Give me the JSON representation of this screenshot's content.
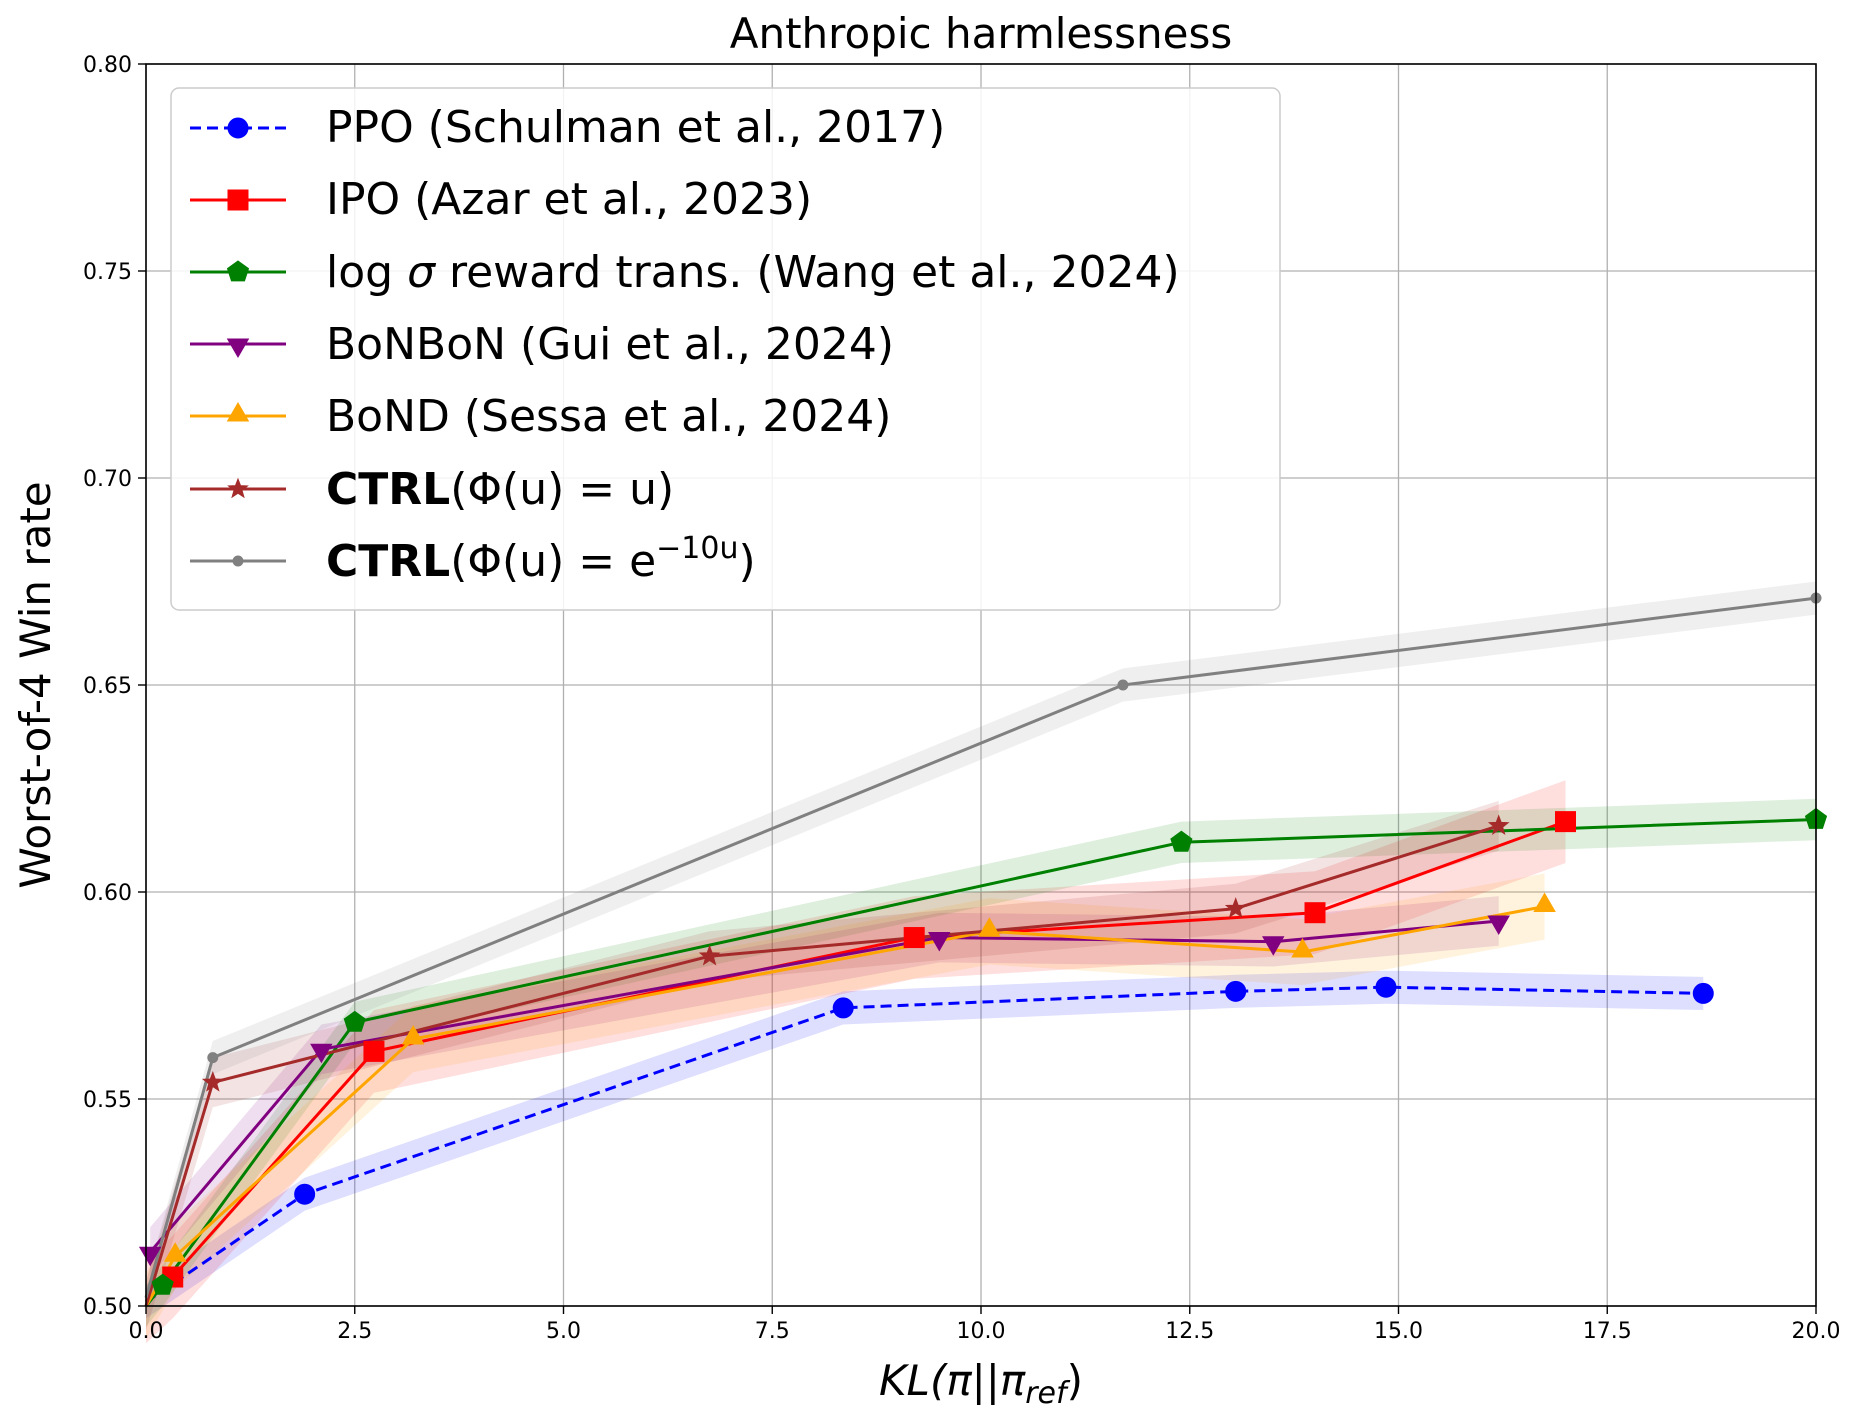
{
  "chart_data": {
    "type": "line",
    "title": "Anthropic harmlessness",
    "xlabel": {
      "base": "KL(π||π",
      "sub": "ref",
      "close": ")"
    },
    "ylabel": "Worst-of-4 Win rate",
    "xlim": [
      0,
      20
    ],
    "ylim": [
      0.5,
      0.8
    ],
    "x_ticks": [
      0,
      2.5,
      5,
      7.5,
      10,
      12.5,
      15,
      17.5,
      20
    ],
    "x_tick_labels": [
      "0.0",
      "2.5",
      "5.0",
      "7.5",
      "10.0",
      "12.5",
      "15.0",
      "17.5",
      "20.0"
    ],
    "y_ticks": [
      0.5,
      0.55,
      0.6,
      0.65,
      0.7,
      0.75,
      0.8
    ],
    "y_tick_labels": [
      "0.50",
      "0.55",
      "0.60",
      "0.65",
      "0.70",
      "0.75",
      "0.80"
    ],
    "grid": true,
    "legend_position": "top-left",
    "series": [
      {
        "name": "PPO (Schulman et al., 2017)",
        "color": "#0000ff",
        "marker": "circle",
        "dashed": true,
        "band": 0.004,
        "x": [
          0.0,
          1.9,
          8.35,
          13.05,
          14.85,
          18.65
        ],
        "y": [
          0.501,
          0.527,
          0.572,
          0.576,
          0.577,
          0.5755
        ]
      },
      {
        "name": "IPO (Azar et al., 2023)",
        "color": "#ff0000",
        "marker": "square",
        "dashed": false,
        "band": 0.01,
        "x": [
          0.0,
          0.32,
          2.73,
          9.2,
          14.0,
          17.0
        ],
        "y": [
          0.501,
          0.507,
          0.5615,
          0.589,
          0.595,
          0.617
        ]
      },
      {
        "name": "log σ reward trans. (Wang et al., 2024)",
        "label_parts": {
          "prefix": "log ",
          "symbol": "σ",
          "suffix": " reward trans. (Wang et al., 2024)"
        },
        "color": "#008000",
        "marker": "pentagon",
        "dashed": false,
        "band": 0.005,
        "x": [
          0.0,
          0.2,
          2.5,
          12.4,
          20.0
        ],
        "y": [
          0.5,
          0.505,
          0.5685,
          0.612,
          0.6175
        ]
      },
      {
        "name": "BoNBoN (Gui et al., 2024)",
        "color": "#800080",
        "marker": "triangle-down",
        "dashed": false,
        "band": 0.006,
        "x": [
          0.05,
          2.1,
          9.5,
          13.5,
          16.2
        ],
        "y": [
          0.513,
          0.562,
          0.589,
          0.588,
          0.593
        ]
      },
      {
        "name": "BoND (Sessa et al., 2024)",
        "color": "#ffa500",
        "marker": "triangle-up",
        "dashed": false,
        "band": 0.008,
        "x": [
          0.0,
          0.35,
          3.2,
          10.1,
          13.85,
          16.75
        ],
        "y": [
          0.5,
          0.512,
          0.5645,
          0.5905,
          0.5855,
          0.5965
        ]
      },
      {
        "name": "CTRL(Φ(u) = u)",
        "label_parts": {
          "bold": "CTRL",
          "rest": "(Φ(u) = u)"
        },
        "color": "#a52a2a",
        "marker": "star",
        "dashed": false,
        "band": 0.006,
        "x": [
          0.0,
          0.8,
          6.75,
          13.05,
          16.2
        ],
        "y": [
          0.5,
          0.554,
          0.5845,
          0.596,
          0.616
        ]
      },
      {
        "name": "CTRL(Φ(u) = e^(-10u))",
        "label_parts": {
          "bold": "CTRL",
          "rest": "(Φ(u) = e",
          "sup": "−10u",
          "close": ")"
        },
        "color": "#808080",
        "marker": "small-circle",
        "dashed": false,
        "band": 0.004,
        "x": [
          0.0,
          0.8,
          11.7,
          20.0
        ],
        "y": [
          0.502,
          0.56,
          0.65,
          0.671
        ]
      }
    ]
  }
}
